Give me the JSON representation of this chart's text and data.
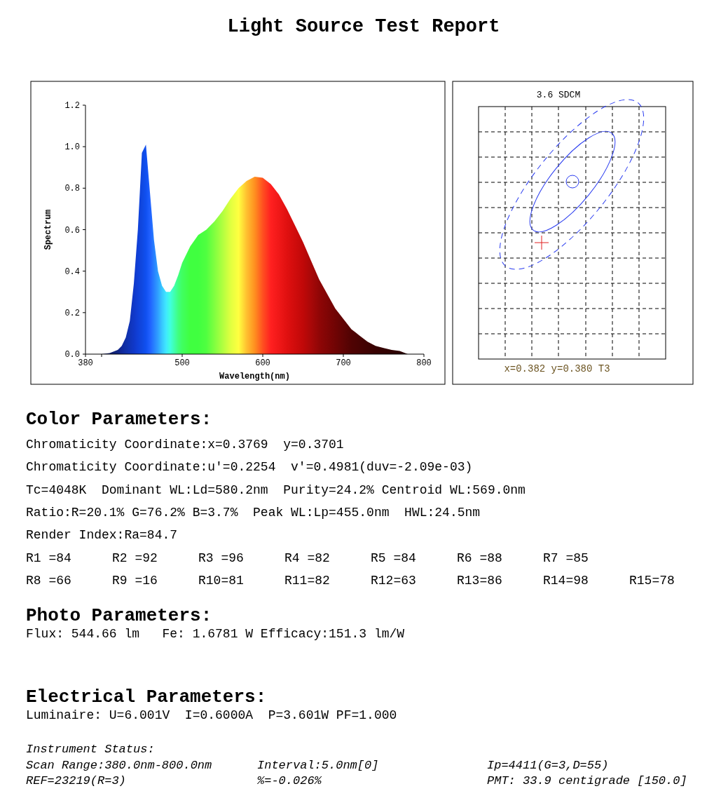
{
  "chart_data": [
    {
      "type": "area",
      "title": "Light Source Test Report",
      "xlabel": "Wavelength(nm)",
      "ylabel": "Spectrum",
      "x": [
        380,
        400,
        410,
        420,
        425,
        430,
        435,
        440,
        445,
        450,
        455,
        460,
        465,
        470,
        475,
        480,
        485,
        490,
        495,
        500,
        510,
        520,
        530,
        540,
        550,
        560,
        570,
        580,
        590,
        600,
        610,
        620,
        630,
        640,
        650,
        660,
        670,
        680,
        690,
        700,
        710,
        720,
        730,
        740,
        750,
        760,
        770,
        780
      ],
      "values": [
        0,
        0,
        0.005,
        0.02,
        0.04,
        0.08,
        0.16,
        0.34,
        0.6,
        0.97,
        1.01,
        0.78,
        0.55,
        0.4,
        0.33,
        0.3,
        0.3,
        0.33,
        0.38,
        0.44,
        0.52,
        0.575,
        0.6,
        0.64,
        0.69,
        0.75,
        0.8,
        0.835,
        0.855,
        0.85,
        0.82,
        0.77,
        0.7,
        0.62,
        0.54,
        0.45,
        0.36,
        0.29,
        0.22,
        0.17,
        0.12,
        0.09,
        0.06,
        0.04,
        0.03,
        0.02,
        0.015,
        0
      ],
      "colors": [
        "#101040",
        "#101860",
        "#102070",
        "#102480",
        "#10289a",
        "#1030a8",
        "#1034b8",
        "#1038c8",
        "#1040d8",
        "#1048e0",
        "#1050f0",
        "#2060ff",
        "#2880ff",
        "#30a0ff",
        "#38c8ff",
        "#40e8ff",
        "#40ffe0",
        "#40ffb0",
        "#40ff80",
        "#40ff60",
        "#40ff40",
        "#40ff40",
        "#50ff40",
        "#80ff40",
        "#b0ff40",
        "#e0ff40",
        "#ffff40",
        "#ffc030",
        "#ff9020",
        "#ff5020",
        "#ff2020",
        "#f01818",
        "#e01010",
        "#d00c0c",
        "#c00808",
        "#a80808",
        "#900606",
        "#800505",
        "#700404",
        "#600404",
        "#500303",
        "#480303",
        "#400303",
        "#380202",
        "#340202",
        "#300202",
        "#2c0202",
        "#280202"
      ],
      "xlim": [
        380,
        800
      ],
      "xticks": [
        380,
        {
          "value": 400,
          "label": null
        },
        500,
        600,
        700,
        800
      ],
      "ylim": [
        0,
        1.2
      ],
      "yticks": [
        {
          "value": 0,
          "label": "0.0"
        },
        {
          "value": 0.2,
          "label": "0.2"
        },
        {
          "value": 0.4,
          "label": "0.4"
        },
        {
          "value": 0.6,
          "label": "0.6"
        },
        {
          "value": 0.8,
          "label": "0.8"
        },
        {
          "value": 1,
          "label": "1.0"
        },
        {
          "value": 1.2,
          "label": "1.2"
        }
      ]
    },
    {
      "type": "other",
      "title": "3.6 SDCM",
      "annotations": [
        "x=0.382 y=0.380 T3"
      ]
    },
    {
      "type": "other",
      "title": "Color Parameters:",
      "annotations": [
        "Chromaticity Coordinate:x=0.3769  y=0.3701",
        "Chromaticity Coordinate:u'=0.2254  v'=0.4981(duv=-2.09e-03)",
        "Tc=4048K  Dominant WL:Ld=580.2nm  Purity=24.2% Centroid WL:569.0nm",
        "Ratio:R=20.1% G=76.2% B=3.7%  Peak WL:Lp=455.0nm  HWL:24.5nm",
        "Render Index:Ra=84.7",
        "R1 =84",
        "R2 =92",
        "R3 =96",
        "R4 =82",
        "R5 =84",
        "R6 =88",
        "R7 =85",
        "R8 =66",
        "R9 =16",
        "R10=81",
        "R11=82",
        "R12=63",
        "R13=86",
        "R14=98",
        "R15=78"
      ]
    },
    {
      "type": "other",
      "title": "Photo Parameters:",
      "annotations": [
        "Flux: 544.66 lm   Fe: 1.6781 W Efficacy:151.3 lm/W"
      ]
    },
    {
      "type": "other",
      "title": "Electrical Parameters:",
      "annotations": [
        "Luminaire: U=6.001V  I=0.6000A  P=3.601W PF=1.000"
      ]
    },
    {
      "type": "other",
      "title": "Instrument Status:",
      "annotations": [
        "Scan Range:380.0nm-800.0nm",
        "Interval:5.0nm[0]",
        "Ip=4411(G=3,D=55)",
        "REF=23219(R=3)",
        "%=-0.026%",
        "PMT: 33.9 centigrade [150.0]"
      ]
    }
  ]
}
